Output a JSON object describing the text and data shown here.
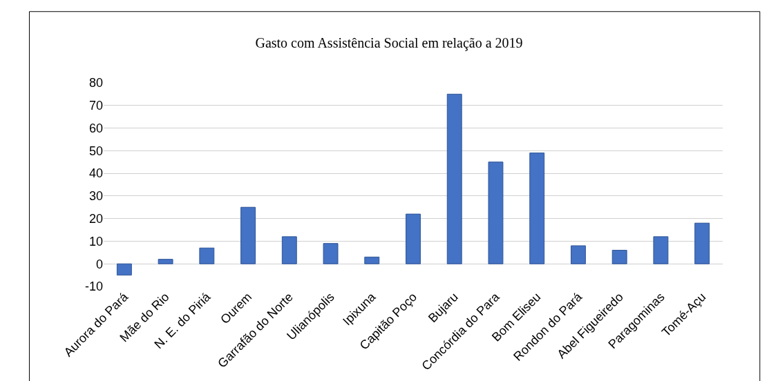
{
  "chart_data": {
    "type": "bar",
    "title": "Gasto com Assistência Social em relação a 2019",
    "categories": [
      "Aurora do Pará",
      "Mãe do Rio",
      "N. E. do Piriá",
      "Ourem",
      "Garrafão do Norte",
      "Ulianópolis",
      "Ipixuna",
      "Capitão Poço",
      "Bujaru",
      "Concórdia do Para",
      "Bom Eliseu",
      "Rondon do Pará",
      "Abel Figueiredo",
      "Paragominas",
      "Tomé-Açu"
    ],
    "values": [
      -5,
      2,
      7,
      25,
      12,
      9,
      3,
      22,
      75,
      45,
      49,
      8,
      6,
      12,
      18
    ],
    "color": "#4472c4",
    "ylim": [
      -10,
      80
    ],
    "yticks": [
      -10,
      0,
      10,
      20,
      30,
      40,
      50,
      60,
      70,
      80
    ],
    "grid": "y"
  }
}
